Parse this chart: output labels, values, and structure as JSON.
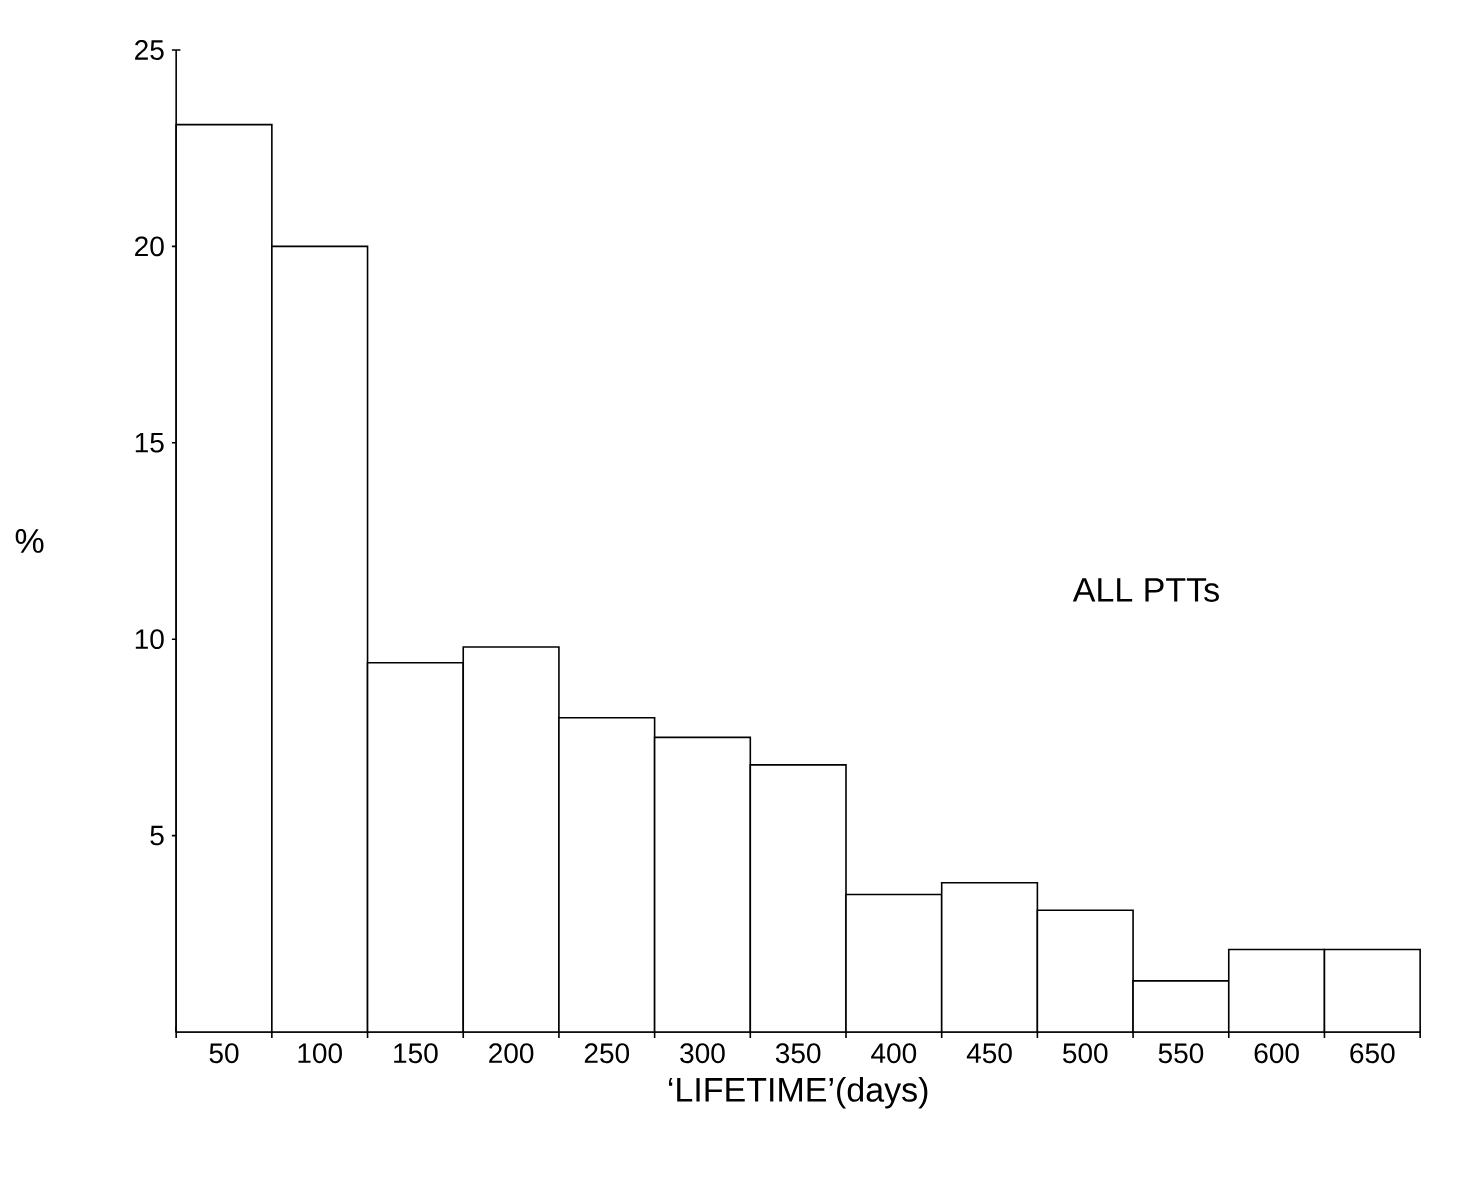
{
  "chart_data": {
    "type": "bar",
    "xlabel": "‘LIFETIME’(days)",
    "ylabel": "%",
    "annotations": [
      "ALL PTTs"
    ],
    "categories": [
      "50",
      "100",
      "150",
      "200",
      "250",
      "300",
      "350",
      "400",
      "450",
      "500",
      "550",
      "600",
      "650"
    ],
    "values": [
      23.1,
      20.0,
      9.4,
      9.8,
      8.0,
      7.5,
      6.8,
      3.5,
      3.8,
      3.1,
      1.3,
      2.1,
      2.1
    ],
    "color": "#000000",
    "ylim": [
      0,
      25
    ],
    "yticks": [
      5,
      10,
      15,
      20,
      25
    ],
    "grid": false
  }
}
